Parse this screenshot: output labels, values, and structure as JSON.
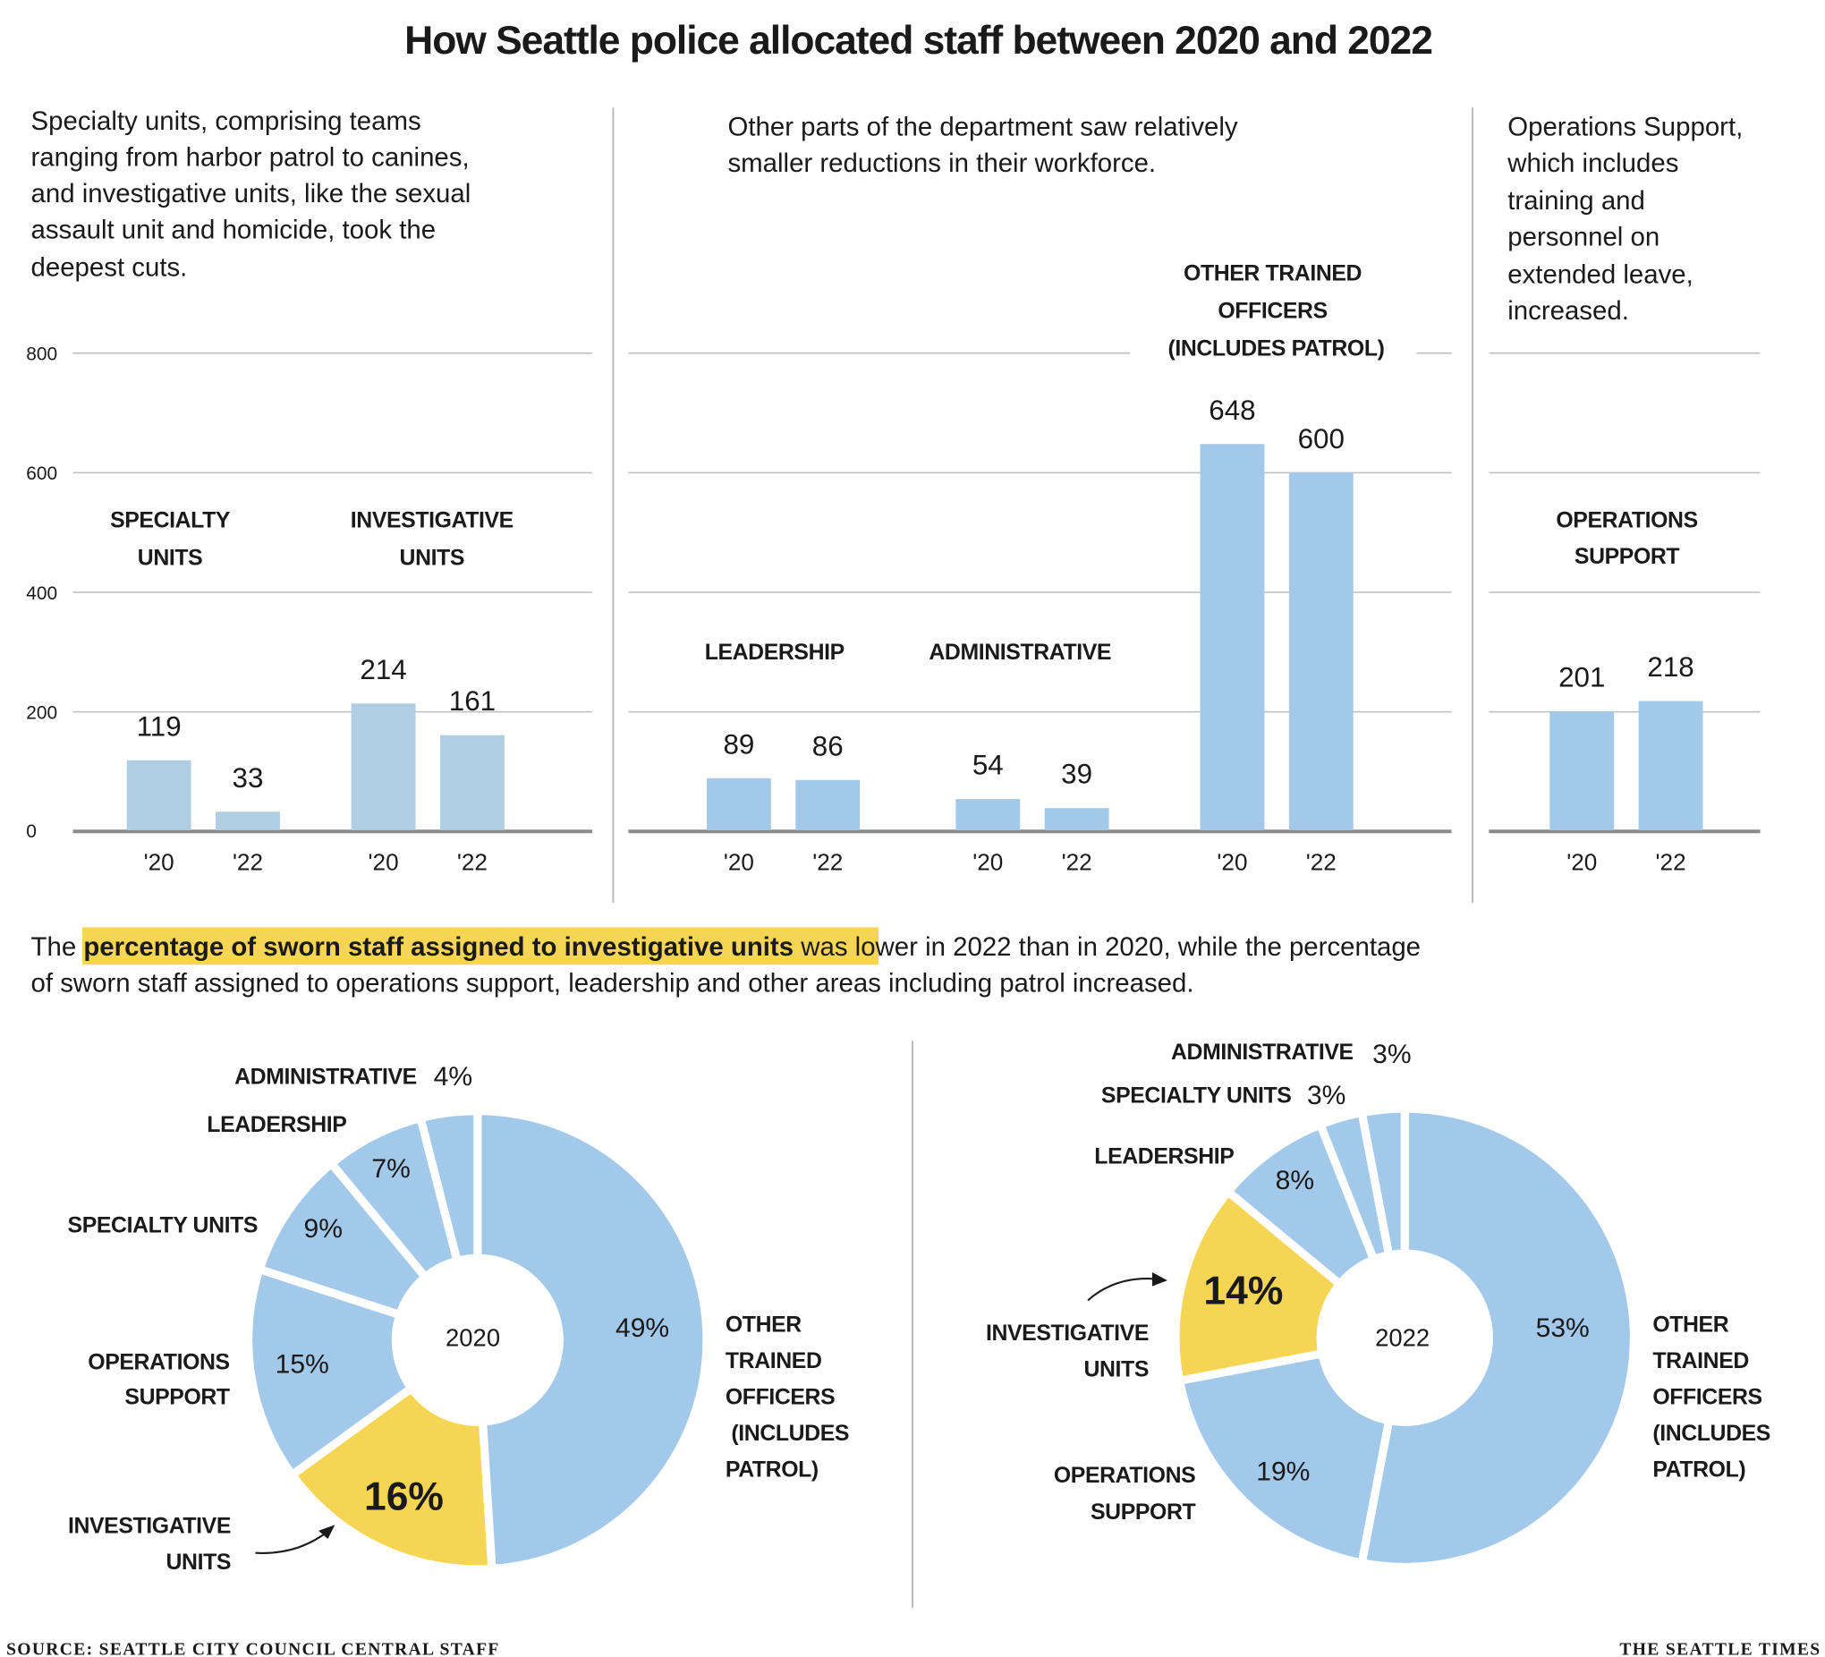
{
  "title": "How Seattle police allocated staff between 2020 and 2022",
  "intro": {
    "left": [
      "Specialty units, comprising teams",
      "ranging from harbor patrol to canines,",
      "and investigative units, like the sexual",
      "assault unit and homicide, took the",
      "deepest cuts."
    ],
    "middle": [
      "Other parts of the department saw relatively",
      "smaller reductions in their workforce."
    ],
    "right": [
      "Operations Support,",
      "which includes",
      "training and",
      "personnel on",
      "extended leave,",
      "increased."
    ]
  },
  "group_labels": {
    "specialty": [
      "SPECIALTY",
      "UNITS"
    ],
    "investigative": [
      "INVESTIGATIVE",
      "UNITS"
    ],
    "leadership": [
      "LEADERSHIP"
    ],
    "administrative": [
      "ADMINISTRATIVE"
    ],
    "other": [
      "OTHER TRAINED",
      "OFFICERS",
      "(INCLUDES PATROL)"
    ],
    "operations": [
      "OPERATIONS",
      "SUPPORT"
    ]
  },
  "summary": {
    "before": "The",
    "highlight": "percentage of sworn staff assigned to investigative units",
    "after": "was lower in 2022 than in 2020, while the percentage",
    "line2": "of sworn staff assigned to operations support, leadership and other areas including patrol increased."
  },
  "colors": {
    "bar_highlight_panel": "#afcde3",
    "bar": "#a3c9ea",
    "donut_blue": "#a3c9ea",
    "donut_yellow": "#f5d553",
    "highlight": "#f5d553"
  },
  "chart_data": [
    {
      "type": "bar",
      "ylim": [
        0,
        800
      ],
      "yticks": [
        "0",
        "200",
        "400",
        "600",
        "800"
      ],
      "grid": true,
      "x_tick_labels": [
        "'20",
        "'22"
      ],
      "groups": [
        {
          "name": "SPECIALTY UNITS",
          "values": [
            119,
            33
          ]
        },
        {
          "name": "INVESTIGATIVE UNITS",
          "values": [
            214,
            161
          ]
        },
        {
          "name": "LEADERSHIP",
          "values": [
            89,
            86
          ]
        },
        {
          "name": "ADMINISTRATIVE",
          "values": [
            54,
            39
          ]
        },
        {
          "name": "OTHER TRAINED OFFICERS (INCLUDES PATROL)",
          "values": [
            648,
            600
          ]
        },
        {
          "name": "OPERATIONS SUPPORT",
          "values": [
            201,
            218
          ]
        }
      ]
    },
    {
      "type": "pie",
      "center_label": "2020",
      "slices": [
        {
          "name": "OTHER TRAINED OFFICERS (INCLUDES PATROL)",
          "value": 49,
          "label": "49%",
          "highlight": false
        },
        {
          "name": "INVESTIGATIVE UNITS",
          "value": 16,
          "label": "16%",
          "highlight": true
        },
        {
          "name": "OPERATIONS SUPPORT",
          "value": 15,
          "label": "15%",
          "highlight": false
        },
        {
          "name": "SPECIALTY UNITS",
          "value": 9,
          "label": "9%",
          "highlight": false
        },
        {
          "name": "LEADERSHIP",
          "value": 7,
          "label": "7%",
          "highlight": false
        },
        {
          "name": "ADMINISTRATIVE",
          "value": 4,
          "label": "4%",
          "highlight": false
        }
      ]
    },
    {
      "type": "pie",
      "center_label": "2022",
      "slices": [
        {
          "name": "OTHER TRAINED OFFICERS (INCLUDES PATROL)",
          "value": 53,
          "label": "53%",
          "highlight": false
        },
        {
          "name": "OPERATIONS SUPPORT",
          "value": 19,
          "label": "19%",
          "highlight": false
        },
        {
          "name": "INVESTIGATIVE UNITS",
          "value": 14,
          "label": "14%",
          "highlight": true
        },
        {
          "name": "LEADERSHIP",
          "value": 8,
          "label": "8%",
          "highlight": false
        },
        {
          "name": "SPECIALTY UNITS",
          "value": 3,
          "label": "3%",
          "highlight": false
        },
        {
          "name": "ADMINISTRATIVE",
          "value": 3,
          "label": "3%",
          "highlight": false
        }
      ]
    }
  ],
  "pie_labels": {
    "administrative": "ADMINISTRATIVE",
    "leadership": "LEADERSHIP",
    "specialty": "SPECIALTY UNITS",
    "operations": [
      "OPERATIONS",
      "SUPPORT"
    ],
    "investigative": [
      "INVESTIGATIVE",
      "UNITS"
    ],
    "other": [
      "OTHER",
      "TRAINED",
      "OFFICERS",
      "(INCLUDES",
      "PATROL)"
    ]
  },
  "footer": {
    "source": "SOURCE: SEATTLE CITY COUNCIL CENTRAL STAFF",
    "credit": "THE SEATTLE TIMES"
  }
}
